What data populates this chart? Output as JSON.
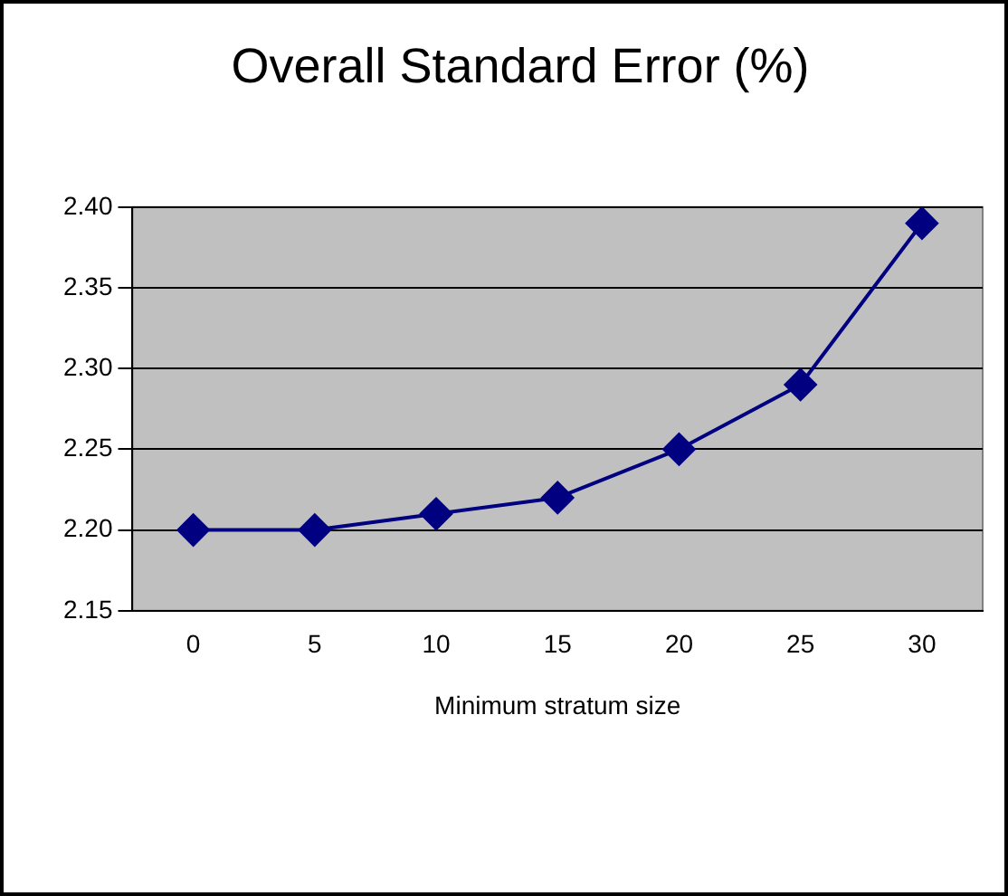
{
  "chart_data": {
    "type": "line",
    "title": "Overall Standard Error (%)",
    "xlabel": "Minimum stratum size",
    "categories": [
      "0",
      "5",
      "10",
      "15",
      "20",
      "25",
      "30"
    ],
    "series": [
      {
        "color": "#000080",
        "values": [
          2.2,
          2.2,
          2.21,
          2.22,
          2.25,
          2.29,
          2.39
        ]
      }
    ],
    "ylim": [
      2.15,
      2.4
    ],
    "yticks": [
      {
        "value": 2.15,
        "label": "2.15"
      },
      {
        "value": 2.2,
        "label": "2.20"
      },
      {
        "value": 2.25,
        "label": "2.25"
      },
      {
        "value": 2.3,
        "label": "2.30"
      },
      {
        "value": 2.35,
        "label": "2.35"
      },
      {
        "value": 2.4,
        "label": "2.40"
      }
    ],
    "grid": "y",
    "legend": false,
    "marker": "diamond",
    "line_style": "solid"
  }
}
